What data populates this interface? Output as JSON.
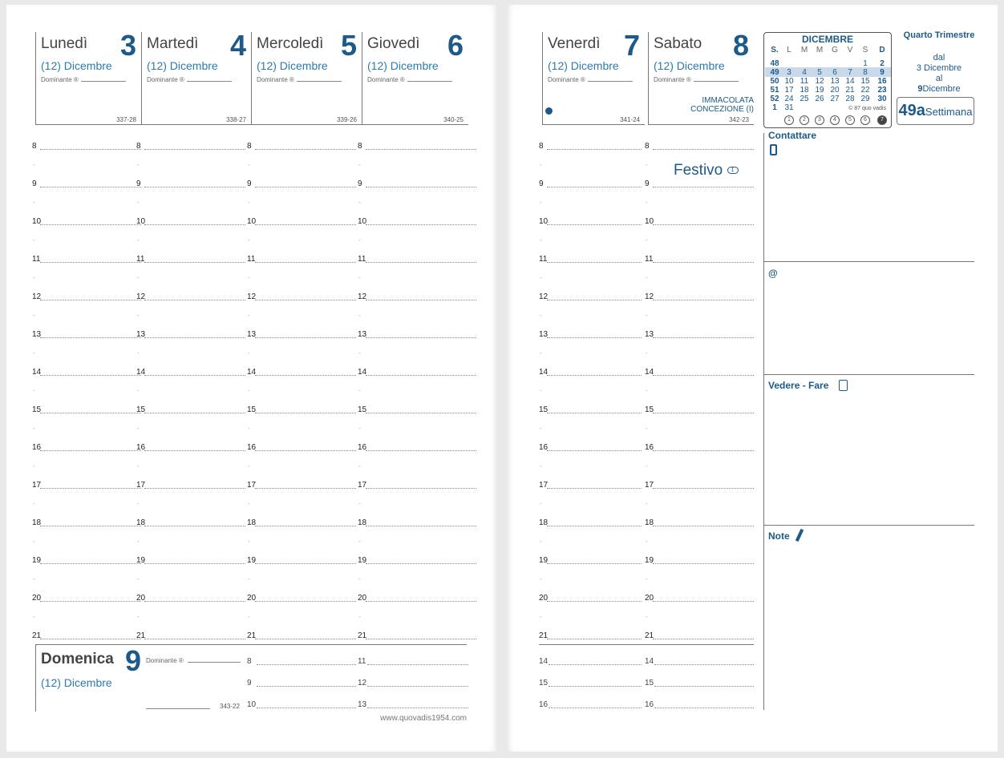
{
  "left_page": {
    "days": [
      {
        "name": "Lunedì",
        "number": "3",
        "month": "(12) Dicembre",
        "dominant_label": "Dominante ®",
        "code": "337-28"
      },
      {
        "name": "Martedì",
        "number": "4",
        "month": "(12) Dicembre",
        "dominant_label": "Dominante ®",
        "code": "338-27"
      },
      {
        "name": "Mercoledì",
        "number": "5",
        "month": "(12) Dicembre",
        "dominant_label": "Dominante ®",
        "code": "339-26"
      },
      {
        "name": "Giovedì",
        "number": "6",
        "month": "(12) Dicembre",
        "dominant_label": "Dominante ®",
        "code": "340-25"
      }
    ],
    "hours": [
      "8",
      "9",
      "10",
      "11",
      "12",
      "13",
      "14",
      "15",
      "16",
      "17",
      "18",
      "19",
      "20",
      "21"
    ],
    "sunday": {
      "name": "Domenica",
      "number": "9",
      "month": "(12) Dicembre",
      "dominant_label": "Dominante ®",
      "code": "343-22",
      "hours_a": [
        "8",
        "9",
        "10"
      ],
      "hours_b": [
        "11",
        "12",
        "13"
      ]
    },
    "footer_url": "www.quovadis1954.com"
  },
  "right_page": {
    "days": [
      {
        "name": "Venerdì",
        "number": "7",
        "month": "(12) Dicembre",
        "dominant_label": "Dominante ®",
        "code": "341-24"
      },
      {
        "name": "Sabato",
        "number": "8",
        "month": "(12) Dicembre",
        "dominant_label": "Dominante ®",
        "code": "342-23",
        "holiday_line1": "IMMACOLATA",
        "holiday_line2": "CONCEZIONE (I)"
      }
    ],
    "festivo": "Festivo",
    "festivo_num": "1",
    "extra_hours": [
      "14",
      "15",
      "16"
    ],
    "calendar": {
      "month": "DICEMBRE",
      "headers": [
        "S.",
        "L",
        "M",
        "M",
        "G",
        "V",
        "S",
        "D"
      ],
      "rows": [
        [
          "48",
          "",
          "",
          "",
          "",
          "",
          "1",
          "2"
        ],
        [
          "49",
          "3",
          "4",
          "5",
          "6",
          "7",
          "8",
          "9"
        ],
        [
          "50",
          "10",
          "11",
          "12",
          "13",
          "14",
          "15",
          "16"
        ],
        [
          "51",
          "17",
          "18",
          "19",
          "20",
          "21",
          "22",
          "23"
        ],
        [
          "52",
          "24",
          "25",
          "26",
          "27",
          "28",
          "29",
          "30"
        ],
        [
          "1",
          "31",
          "",
          "",
          "",
          "",
          "",
          ""
        ]
      ],
      "copyright": "© 87 quo vadis",
      "weekday_circles": [
        "1",
        "2",
        "3",
        "4",
        "5",
        "6",
        "7"
      ]
    },
    "quarter": "Quarto Trimestre",
    "range": {
      "from_label": "dal",
      "from": "3 Dicembre",
      "to_label": "al",
      "to_num": "9",
      "to_month": "Dicembre"
    },
    "week": {
      "num": "49a",
      "label": "Settimana"
    },
    "sections": {
      "contattare": "Contattare",
      "at": "@",
      "vedere": "Vedere - Fare",
      "note": "Note"
    }
  }
}
